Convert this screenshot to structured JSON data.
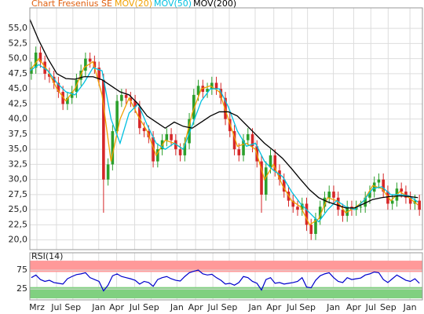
{
  "chart_data": {
    "type": "candlestick",
    "title": "Chart Fresenius SE",
    "title_color": "#e06010",
    "up_color": "#2ca02c",
    "down_color": "#d62728",
    "grid": true,
    "xlim": [
      0,
      261
    ],
    "xticks": [
      {
        "value": 4.7,
        "label": "Mrz"
      },
      {
        "value": 17.7,
        "label": "Jul"
      },
      {
        "value": 28.6,
        "label": "Sep"
      },
      {
        "value": 45.8,
        "label": "Jan"
      },
      {
        "value": 57.7,
        "label": "Apr"
      },
      {
        "value": 69.7,
        "label": "Jul"
      },
      {
        "value": 80.6,
        "label": "Sep"
      },
      {
        "value": 97.8,
        "label": "Jan"
      },
      {
        "value": 110.2,
        "label": "Apr"
      },
      {
        "value": 121.7,
        "label": "Jul"
      },
      {
        "value": 132.6,
        "label": "Sep"
      },
      {
        "value": 149.8,
        "label": "Jan"
      },
      {
        "value": 162.2,
        "label": "Apr"
      },
      {
        "value": 174.2,
        "label": "Jul"
      },
      {
        "value": 184.6,
        "label": "Sep"
      },
      {
        "value": 201.8,
        "label": "Jan"
      },
      {
        "value": 215.3,
        "label": "Apr"
      },
      {
        "value": 226.7,
        "label": "Jul"
      },
      {
        "value": 238.2,
        "label": "Sep"
      },
      {
        "value": 252.7,
        "label": "Jan"
      }
    ],
    "ylim": [
      18.4,
      58.4
    ],
    "yticks": [
      {
        "value": 20,
        "label": "20,0"
      },
      {
        "value": 22.5,
        "label": "22,5"
      },
      {
        "value": 25,
        "label": "25,0"
      },
      {
        "value": 27.5,
        "label": "27,5"
      },
      {
        "value": 30,
        "label": "30,0"
      },
      {
        "value": 32.5,
        "label": "32,5"
      },
      {
        "value": 35,
        "label": "35,0"
      },
      {
        "value": 37.5,
        "label": "37,5"
      },
      {
        "value": 40,
        "label": "40,0"
      },
      {
        "value": 42.5,
        "label": "42,5"
      },
      {
        "value": 45,
        "label": "45,0"
      },
      {
        "value": 47.5,
        "label": "47,5"
      },
      {
        "value": 50,
        "label": "50,0"
      },
      {
        "value": 52.5,
        "label": "52,5"
      },
      {
        "value": 55,
        "label": "55,0"
      }
    ],
    "candles": {
      "x": [
        1,
        4,
        7,
        10,
        13,
        16,
        19,
        22,
        25,
        28,
        31,
        34,
        37,
        40,
        43,
        46,
        49,
        52,
        55,
        58,
        61,
        64,
        67,
        70,
        73,
        76,
        79,
        82,
        85,
        88,
        91,
        94,
        97,
        100,
        103,
        106,
        109,
        112,
        115,
        118,
        121,
        124,
        127,
        130,
        133,
        136,
        139,
        142,
        145,
        148,
        151,
        154,
        157,
        160,
        163,
        166,
        169,
        172,
        175,
        178,
        181,
        184,
        187,
        190,
        193,
        196,
        199,
        202,
        205,
        208,
        211,
        214,
        217,
        220,
        223,
        226,
        229,
        232,
        235,
        238,
        241,
        244,
        247,
        250,
        253,
        256,
        259
      ],
      "open": [
        47.5,
        48.5,
        51,
        49.5,
        47.5,
        47,
        46,
        44.5,
        42.5,
        43.5,
        44.5,
        46.5,
        48,
        50,
        49.5,
        48.5,
        46.5,
        30,
        32.5,
        38,
        43,
        44,
        43.5,
        43,
        42,
        38.5,
        38,
        37,
        33,
        35,
        36.5,
        37.5,
        36.5,
        35,
        34,
        36,
        40,
        44,
        45.5,
        44.5,
        45,
        46,
        45,
        43.5,
        40,
        38,
        35,
        34,
        36.5,
        37.5,
        35.5,
        33,
        27.5,
        32,
        34,
        31.5,
        30,
        28,
        26.5,
        25.5,
        25,
        26,
        22.5,
        21,
        23.5,
        25.5,
        27,
        28,
        27,
        25,
        24,
        25.5,
        25,
        25.5,
        25.5,
        27,
        28,
        29.5,
        30,
        28,
        26,
        26.5,
        28.5,
        28,
        27,
        26,
        26.5
      ],
      "high": [
        49.5,
        52,
        52,
        50.5,
        48.5,
        48,
        47,
        45.5,
        44.5,
        45.5,
        47.5,
        49,
        51,
        51,
        50.5,
        49.5,
        47.5,
        33.5,
        39,
        44,
        45,
        45,
        44.5,
        44,
        43,
        39.5,
        39,
        38,
        36,
        37.5,
        38.5,
        38.5,
        37.5,
        36,
        37,
        41,
        45,
        46.5,
        46.5,
        46,
        47,
        47,
        46,
        44.5,
        41,
        39,
        36,
        37.5,
        38.5,
        38.5,
        36.5,
        34,
        33,
        35,
        35,
        32.5,
        31,
        29,
        27.5,
        26.5,
        27,
        27,
        23.5,
        24.5,
        26.5,
        28,
        29,
        29,
        28,
        26,
        26.5,
        26.5,
        26.5,
        26.5,
        28,
        29,
        30.5,
        31,
        31,
        29,
        27.5,
        29.5,
        29.5,
        29,
        28,
        27.5,
        27.5
      ],
      "low": [
        46.5,
        47.5,
        48.5,
        46.5,
        46,
        45,
        43.5,
        41.5,
        41.5,
        42.5,
        43.5,
        45.5,
        47,
        48.5,
        47.5,
        45.5,
        24.5,
        29,
        31.5,
        37,
        42,
        42.5,
        42,
        41,
        37.5,
        37,
        36,
        32,
        32,
        34,
        35.5,
        35.5,
        34,
        33,
        33,
        35,
        39,
        43,
        43.5,
        43.5,
        44,
        44,
        42.5,
        39,
        37,
        34,
        33,
        33,
        35.5,
        34.5,
        32,
        24.5,
        26.5,
        31,
        30.5,
        29,
        27,
        25.5,
        24.5,
        24,
        24,
        21.5,
        20,
        20,
        22.5,
        24.5,
        26,
        26,
        24,
        23,
        23,
        24,
        24,
        24.5,
        24.5,
        26,
        27,
        28.5,
        27,
        25,
        25,
        25.5,
        27,
        26,
        25,
        25,
        24
      ],
      "close": [
        48.5,
        51,
        49.5,
        47.5,
        47,
        46,
        44.5,
        42.5,
        43.5,
        44.5,
        46.5,
        48,
        50,
        49.5,
        48.5,
        46.5,
        30,
        32.5,
        38,
        43,
        44,
        43.5,
        43,
        42,
        38.5,
        38,
        37,
        33,
        35,
        36.5,
        37.5,
        36.5,
        35,
        34,
        36,
        40,
        44,
        45.5,
        44.5,
        45,
        46,
        45,
        43.5,
        40,
        38,
        35,
        34,
        36.5,
        37.5,
        35.5,
        33,
        27.5,
        32,
        34,
        31.5,
        30,
        28,
        26.5,
        25.5,
        25,
        26,
        22.5,
        21,
        23.5,
        25.5,
        27,
        28,
        27,
        25,
        24,
        25.5,
        25,
        25.5,
        25.5,
        27,
        28,
        29.5,
        30,
        28,
        26,
        26.5,
        28.5,
        28,
        27,
        26,
        26.5,
        25
      ]
    },
    "line_x": [
      0,
      6,
      12,
      18,
      24,
      30,
      36,
      42,
      48,
      54,
      60,
      66,
      72,
      78,
      84,
      90,
      96,
      102,
      108,
      114,
      120,
      126,
      132,
      138,
      144,
      150,
      156,
      162,
      168,
      174,
      180,
      186,
      192,
      198,
      204,
      210,
      216,
      222,
      228,
      234,
      240,
      246,
      252,
      258
    ],
    "series": [
      {
        "name": "MOV(20)",
        "color": "#f0a000",
        "values": [
          48,
          50,
          48,
          45,
          43,
          45,
          48.5,
          49.5,
          44,
          33,
          40,
          43.5,
          40.5,
          38,
          34,
          36.5,
          36,
          35,
          41,
          45,
          45.5,
          44.5,
          40,
          35.5,
          36,
          35,
          30,
          32.5,
          29,
          26.5,
          25.5,
          22.5,
          23.5,
          27,
          26.5,
          24.5,
          25.3,
          26.5,
          29,
          28.5,
          26.5,
          28,
          27,
          25.8
        ]
      },
      {
        "name": "MOV(50)",
        "color": "#00c0e0",
        "values": [
          48,
          49,
          48,
          46,
          44.5,
          44,
          46,
          48.5,
          48,
          40,
          36,
          41,
          42.5,
          39,
          36,
          35,
          36,
          35,
          39,
          43,
          45,
          45,
          42,
          38,
          35.5,
          36,
          33,
          31.5,
          30.5,
          28,
          26,
          24.5,
          23,
          25,
          26.5,
          25.5,
          25,
          26.5,
          28.5,
          28.8,
          27.5,
          27.5,
          27.3,
          26.3
        ]
      },
      {
        "name": "MOV(200)",
        "color": "#000000",
        "values": [
          56.5,
          53,
          50,
          47.5,
          46.7,
          46.6,
          47,
          47,
          46.5,
          45.5,
          44.5,
          44,
          42.5,
          40.5,
          39.5,
          38.5,
          39.5,
          38.8,
          38.5,
          39.5,
          40.5,
          41.2,
          41.2,
          40.5,
          39,
          37.5,
          36,
          34.8,
          33.5,
          31.8,
          30,
          28.3,
          27,
          26.3,
          25.8,
          25.3,
          25.3,
          26,
          26.7,
          27,
          27.2,
          27.3,
          27.2,
          27
        ]
      }
    ],
    "rsi": {
      "label": "RSI(14)",
      "color": "#0000cc",
      "ylim": [
        -4,
        121
      ],
      "yticks": [
        25,
        75
      ],
      "overbought": [
        70,
        100
      ],
      "overbought_color": "#ff9999",
      "oversold": [
        0,
        30
      ],
      "oversold_color": "#80d080",
      "values": [
        55,
        62,
        50,
        45,
        48,
        42,
        40,
        38,
        52,
        58,
        63,
        65,
        68,
        55,
        50,
        45,
        20,
        35,
        60,
        65,
        58,
        55,
        52,
        48,
        38,
        45,
        42,
        32,
        50,
        55,
        58,
        52,
        48,
        46,
        58,
        68,
        72,
        75,
        65,
        62,
        64,
        55,
        48,
        38,
        40,
        35,
        42,
        58,
        55,
        45,
        40,
        22,
        50,
        55,
        40,
        42,
        38,
        40,
        42,
        45,
        55,
        30,
        28,
        48,
        60,
        65,
        68,
        55,
        45,
        42,
        55,
        50,
        52,
        54,
        62,
        65,
        70,
        68,
        50,
        42,
        52,
        62,
        55,
        48,
        45,
        52,
        40
      ]
    }
  }
}
